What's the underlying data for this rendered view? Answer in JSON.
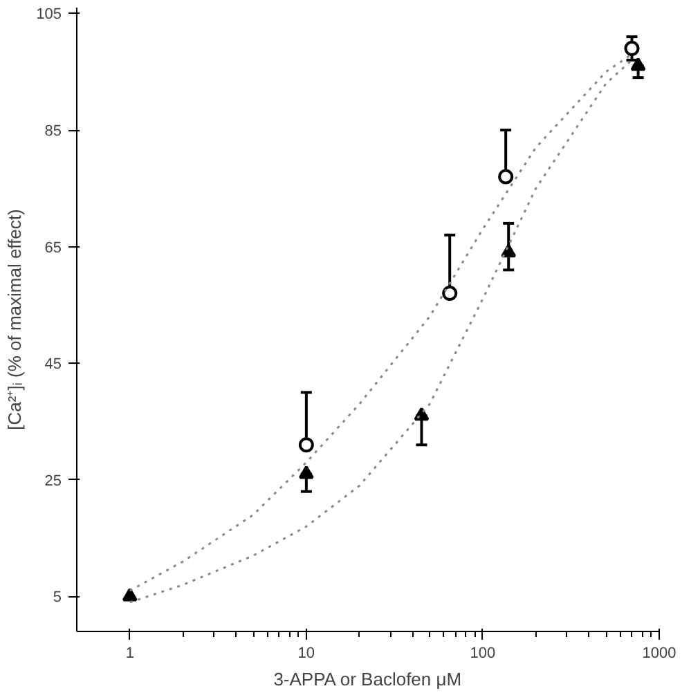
{
  "chart_data": {
    "type": "scatter",
    "xlabel": "3-APPA or Baclofen μM",
    "ylabel": "[Ca²⁺]ᵢ (% of maximal effect)",
    "log": "x",
    "xlim": [
      0.5,
      1000
    ],
    "ylim": [
      -1,
      106
    ],
    "xticks": [
      1,
      10,
      100,
      1000
    ],
    "yticks": [
      5,
      25,
      45,
      65,
      85,
      105
    ],
    "grid": false,
    "series": [
      {
        "marker": "circle",
        "color": "#000000",
        "x": [
          10,
          65,
          135,
          700
        ],
        "values": [
          31,
          57,
          77,
          99
        ],
        "errors": [
          [
            31,
            40
          ],
          [
            57,
            67
          ],
          [
            77,
            85
          ],
          [
            97,
            101
          ]
        ]
      },
      {
        "marker": "triangle",
        "color": "#000000",
        "x": [
          1,
          10,
          45,
          140,
          760
        ],
        "values": [
          5,
          26,
          36,
          64,
          96
        ],
        "errors": [
          null,
          [
            23,
            26
          ],
          [
            31,
            36
          ],
          [
            61,
            69
          ],
          [
            94,
            96
          ]
        ]
      },
      {
        "type": "line",
        "line_style": "dotted",
        "marker": "none",
        "color": "#888888",
        "x": [
          1,
          2,
          5,
          10,
          20,
          50,
          100,
          200,
          500,
          700
        ],
        "values": [
          6,
          11,
          19,
          28,
          38,
          53,
          68,
          82,
          95,
          98
        ]
      },
      {
        "type": "line",
        "line_style": "dotted",
        "marker": "none",
        "color": "#888888",
        "x": [
          1,
          2,
          5,
          10,
          20,
          50,
          100,
          200,
          500,
          700
        ],
        "values": [
          4,
          7,
          12,
          17,
          24,
          38,
          56,
          75,
          93,
          97
        ]
      }
    ]
  }
}
